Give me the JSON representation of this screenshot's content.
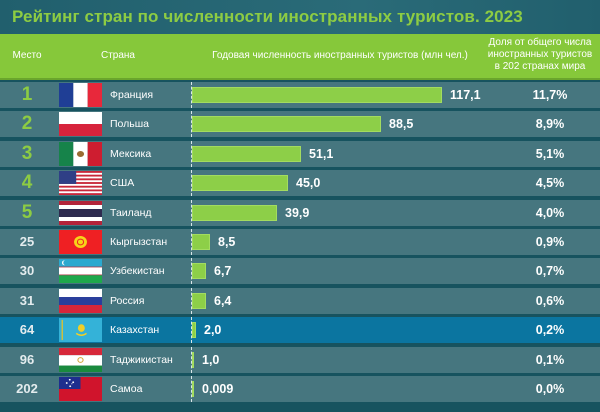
{
  "title": "Рейтинг стран по численности иностранных туристов. 2023",
  "header": {
    "rank": "Место",
    "country": "Страна",
    "tourists": "Годовая численность иностранных туристов (млн чел.)",
    "share_line1": "Доля от общего числа",
    "share_line2": "иностранных туристов",
    "share_line3": "в 202 странах мира"
  },
  "colors": {
    "accent_green": "#8dcc43",
    "header_bg": "#86c83a",
    "row_bg": "#46767f",
    "highlight_row_bg": "#0b75a0",
    "page_bg": "#17535f"
  },
  "rows": [
    {
      "rank": "1",
      "country": "Франция",
      "flag": "france-flag",
      "value": "117,1",
      "share": "11,7%",
      "top": true
    },
    {
      "rank": "2",
      "country": "Польша",
      "flag": "poland-flag",
      "value": "88,5",
      "share": "8,9%",
      "top": true
    },
    {
      "rank": "3",
      "country": "Мексика",
      "flag": "mexico-flag",
      "value": "51,1",
      "share": "5,1%",
      "top": true
    },
    {
      "rank": "4",
      "country": "США",
      "flag": "usa-flag",
      "value": "45,0",
      "share": "4,5%",
      "top": true
    },
    {
      "rank": "5",
      "country": "Таиланд",
      "flag": "thailand-flag",
      "value": "39,9",
      "share": "4,0%",
      "top": true
    },
    {
      "rank": "25",
      "country": "Кыргызстан",
      "flag": "kyrgyzstan-flag",
      "value": "8,5",
      "share": "0,9%"
    },
    {
      "rank": "30",
      "country": "Узбекистан",
      "flag": "uzbekistan-flag",
      "value": "6,7",
      "share": "0,7%"
    },
    {
      "rank": "31",
      "country": "Россия",
      "flag": "russia-flag",
      "value": "6,4",
      "share": "0,6%"
    },
    {
      "rank": "64",
      "country": "Казахстан",
      "flag": "kazakhstan-flag",
      "value": "2,0",
      "share": "0,2%",
      "highlight": true
    },
    {
      "rank": "96",
      "country": "Таджикистан",
      "flag": "tajikistan-flag",
      "value": "1,0",
      "share": "0,1%"
    },
    {
      "rank": "202",
      "country": "Самоа",
      "flag": "samoa-flag",
      "value": "0,009",
      "share": "0,0%"
    }
  ],
  "chart_data": {
    "type": "bar",
    "orientation": "horizontal",
    "title": "Рейтинг стран по численности иностранных туристов. 2023",
    "xlabel": "Годовая численность иностранных туристов (млн чел.)",
    "ylabel": "Страна",
    "categories": [
      "Франция",
      "Польша",
      "Мексика",
      "США",
      "Таиланд",
      "Кыргызстан",
      "Узбекистан",
      "Россия",
      "Казахстан",
      "Таджикистан",
      "Самоа"
    ],
    "ranks": [
      1,
      2,
      3,
      4,
      5,
      25,
      30,
      31,
      64,
      96,
      202
    ],
    "series": [
      {
        "name": "Годовая численность иностранных туристов (млн чел.)",
        "values": [
          117.1,
          88.5,
          51.1,
          45.0,
          39.9,
          8.5,
          6.7,
          6.4,
          2.0,
          1.0,
          0.009
        ]
      },
      {
        "name": "Доля от общего числа иностранных туристов в 202 странах мира (%)",
        "values": [
          11.7,
          8.9,
          5.1,
          4.5,
          4.0,
          0.9,
          0.7,
          0.6,
          0.2,
          0.1,
          0.0
        ]
      }
    ],
    "highlighted_category": "Казахстан",
    "grid": false,
    "legend": "none"
  }
}
